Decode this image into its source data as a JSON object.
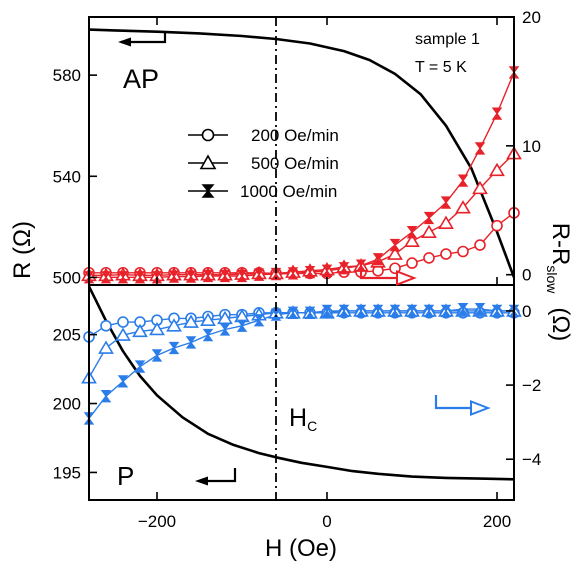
{
  "chart_data": [
    {
      "panel": "top",
      "type": "line",
      "xlim": [
        -280,
        220
      ],
      "left_axis": {
        "label": "R (Ω)",
        "ylim": [
          497,
          603
        ],
        "ticks": [
          500,
          540,
          580
        ]
      },
      "right_axis": {
        "label": "R-R_slow (Ω)",
        "label_main": "R-R",
        "label_sub": "slow",
        "label_unit": "(Ω)",
        "ylim": [
          -0.8,
          20
        ],
        "ticks": [
          0,
          10,
          20
        ]
      },
      "x_ticks": [
        -200,
        0,
        200
      ],
      "annotations": {
        "sample": "sample 1",
        "temperature": "T = 5 K",
        "state": "AP"
      },
      "legend": {
        "placement": "center-left",
        "entries": [
          {
            "label": "200 Oe/min",
            "marker": "circle"
          },
          {
            "label": "500 Oe/min",
            "marker": "triangle"
          },
          {
            "label": "1000 Oe/min",
            "marker": "hourglass"
          }
        ]
      },
      "black_curve": {
        "axis": "left",
        "color": "#000000",
        "x": [
          -280,
          -250,
          -200,
          -150,
          -100,
          -60,
          -20,
          20,
          50,
          80,
          110,
          140,
          170,
          200,
          220
        ],
        "y": [
          598,
          597.7,
          597.2,
          596.5,
          595.5,
          594.3,
          592.5,
          589.5,
          586,
          580.5,
          572.5,
          560,
          543,
          518,
          500
        ]
      },
      "series": [
        {
          "name": "200 Oe/min",
          "marker": "circle",
          "axis": "right",
          "color": "#e8222a",
          "x": [
            -280,
            -260,
            -240,
            -220,
            -200,
            -180,
            -160,
            -140,
            -120,
            -100,
            -80,
            -60,
            -40,
            -20,
            0,
            20,
            40,
            60,
            80,
            100,
            120,
            140,
            160,
            180,
            200,
            220
          ],
          "y": [
            0.15,
            0.15,
            0.15,
            0.15,
            0.15,
            0.15,
            0.15,
            0.15,
            0.15,
            0.15,
            0.15,
            0.1,
            0.1,
            0.1,
            0.1,
            0.2,
            0.2,
            0.3,
            0.5,
            0.9,
            1.3,
            1.6,
            1.8,
            2.3,
            3.8,
            4.8
          ]
        },
        {
          "name": "500 Oe/min",
          "marker": "triangle",
          "axis": "right",
          "color": "#e8222a",
          "x": [
            -280,
            -260,
            -240,
            -220,
            -200,
            -180,
            -160,
            -140,
            -120,
            -100,
            -80,
            -60,
            -40,
            -20,
            0,
            20,
            40,
            60,
            80,
            100,
            120,
            140,
            160,
            180,
            200,
            220
          ],
          "y": [
            -0.05,
            -0.05,
            0,
            -0.05,
            -0.05,
            0,
            0,
            0,
            0,
            0.05,
            0.1,
            0.1,
            0.2,
            0.3,
            0.4,
            0.6,
            0.7,
            1.0,
            1.6,
            2.6,
            3.3,
            4.0,
            5.2,
            6.7,
            8.1,
            9.4
          ]
        },
        {
          "name": "1000 Oe/min",
          "marker": "hourglass",
          "axis": "right",
          "color": "#e8222a",
          "x": [
            -280,
            -260,
            -240,
            -220,
            -200,
            -180,
            -160,
            -140,
            -120,
            -100,
            -80,
            -60,
            -40,
            -20,
            0,
            20,
            40,
            60,
            80,
            100,
            120,
            140,
            160,
            180,
            200,
            220
          ],
          "y": [
            -0.2,
            -0.2,
            -0.2,
            -0.2,
            -0.2,
            -0.15,
            -0.15,
            -0.1,
            -0.1,
            -0.1,
            0.0,
            0.05,
            0.1,
            0.2,
            0.3,
            0.5,
            0.7,
            1.2,
            2.3,
            3.3,
            4.4,
            5.6,
            7.3,
            9.8,
            12.5,
            15.7
          ]
        }
      ]
    },
    {
      "panel": "bottom",
      "type": "line",
      "xlim": [
        -280,
        220
      ],
      "xlabel": "H (Oe)",
      "left_axis": {
        "ylim": [
          193,
          208.6
        ],
        "ticks": [
          195,
          200,
          205
        ]
      },
      "right_axis": {
        "ylim": [
          -5.1,
          0.7
        ],
        "ticks": [
          0,
          -2,
          -4
        ]
      },
      "x_ticks": [
        -200,
        0,
        200
      ],
      "vertical_line": {
        "x": -60,
        "label_main": "H",
        "label_sub": "C"
      },
      "annotations": {
        "state": "P"
      },
      "black_curve": {
        "axis": "left",
        "color": "#000000",
        "x": [
          -280,
          -260,
          -240,
          -220,
          -200,
          -170,
          -140,
          -110,
          -80,
          -60,
          -30,
          0,
          30,
          60,
          100,
          140,
          180,
          220
        ],
        "y": [
          208.5,
          206,
          203.8,
          202,
          200.6,
          199,
          197.8,
          197,
          196.4,
          196.1,
          195.7,
          195.4,
          195.1,
          194.9,
          194.7,
          194.6,
          194.55,
          194.5
        ]
      },
      "series": [
        {
          "name": "200 Oe/min",
          "marker": "circle",
          "axis": "right",
          "color": "#2b7de9",
          "x": [
            -280,
            -260,
            -240,
            -220,
            -200,
            -180,
            -160,
            -140,
            -120,
            -100,
            -80,
            -60,
            -40,
            -20,
            0,
            20,
            40,
            60,
            80,
            100,
            120,
            140,
            160,
            180,
            200,
            220
          ],
          "y": [
            -0.7,
            -0.4,
            -0.3,
            -0.3,
            -0.25,
            -0.2,
            -0.2,
            -0.15,
            -0.1,
            -0.1,
            -0.05,
            -0.05,
            -0.05,
            -0.05,
            -0.05,
            -0.05,
            -0.05,
            -0.05,
            -0.05,
            -0.05,
            -0.05,
            -0.05,
            -0.05,
            -0.05,
            -0.05,
            -0.05
          ]
        },
        {
          "name": "500 Oe/min",
          "marker": "triangle",
          "axis": "right",
          "color": "#2b7de9",
          "x": [
            -280,
            -260,
            -240,
            -220,
            -200,
            -180,
            -160,
            -140,
            -120,
            -100,
            -80,
            -60,
            -40,
            -20,
            0,
            20,
            40,
            60,
            80,
            100,
            120,
            140,
            160,
            180,
            200,
            220
          ],
          "y": [
            -1.8,
            -1.0,
            -0.65,
            -0.55,
            -0.5,
            -0.4,
            -0.3,
            -0.25,
            -0.2,
            -0.15,
            -0.1,
            -0.05,
            -0.05,
            -0.05,
            -0.05,
            0,
            0,
            0,
            0,
            0,
            0,
            0,
            0,
            0,
            0,
            0
          ]
        },
        {
          "name": "1000 Oe/min",
          "marker": "hourglass",
          "axis": "right",
          "color": "#2b7de9",
          "x": [
            -280,
            -260,
            -240,
            -220,
            -200,
            -180,
            -160,
            -140,
            -120,
            -100,
            -80,
            -60,
            -40,
            -20,
            0,
            20,
            40,
            60,
            80,
            100,
            120,
            140,
            160,
            180,
            200,
            220
          ],
          "y": [
            -2.9,
            -2.3,
            -1.9,
            -1.5,
            -1.2,
            -1.0,
            -0.85,
            -0.65,
            -0.5,
            -0.4,
            -0.25,
            -0.1,
            -0.05,
            -0.05,
            0,
            0,
            0,
            0,
            0,
            0,
            0,
            0,
            0.05,
            0.05,
            0,
            0
          ]
        }
      ]
    }
  ]
}
